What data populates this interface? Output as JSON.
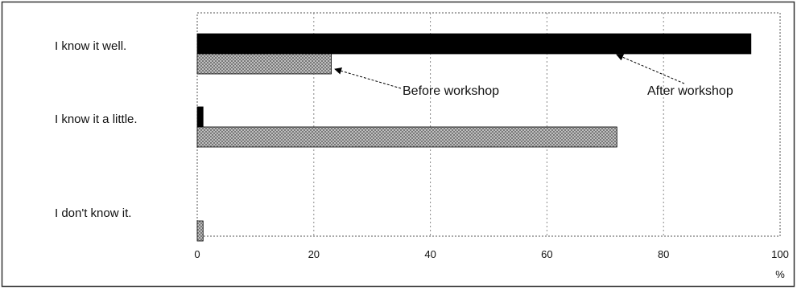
{
  "chart_data": {
    "type": "bar",
    "orientation": "horizontal",
    "categories": [
      "I know it well.",
      "I know it a little.",
      "I don't know it."
    ],
    "series": [
      {
        "name": "After workshop",
        "values": [
          95,
          1,
          0
        ],
        "color": "#000000",
        "pattern": "solid"
      },
      {
        "name": "Before workshop",
        "values": [
          23,
          72,
          1
        ],
        "color": "#999999",
        "pattern": "crosshatch"
      }
    ],
    "xlim": [
      0,
      100
    ],
    "xticks": [
      0,
      20,
      40,
      60,
      80,
      100
    ],
    "x_unit_label": "%",
    "grid": true,
    "legend": "annotations with arrows pointing to bars"
  }
}
